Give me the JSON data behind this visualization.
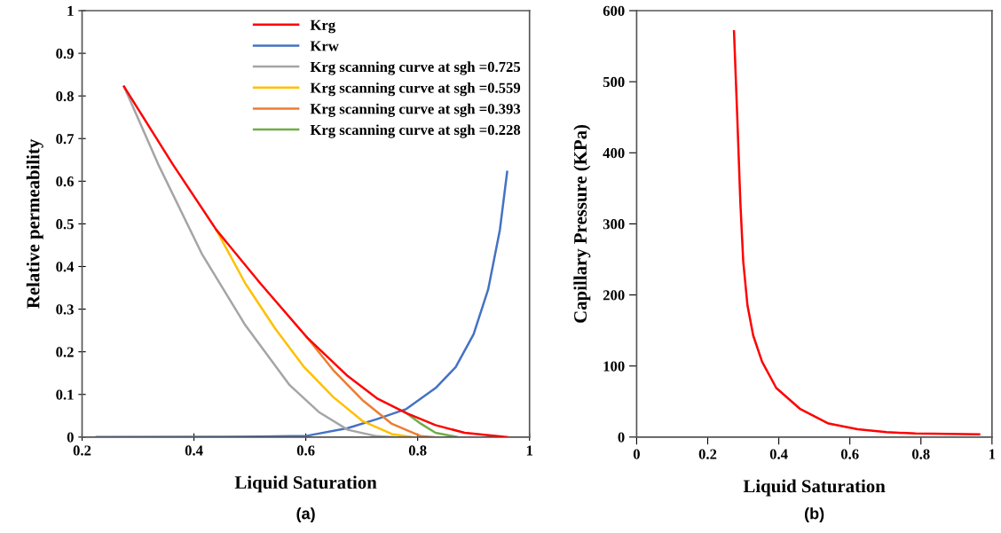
{
  "chart_data": [
    {
      "type": "line",
      "xlabel": "Liquid Saturation",
      "ylabel": "Relative permeability",
      "annotations": [
        "(a)"
      ],
      "xlim": [
        0.2,
        1
      ],
      "xticks": [
        0.2,
        0.4,
        0.6,
        0.8,
        1
      ],
      "ylim": [
        0,
        1
      ],
      "yticks": [
        0,
        0.1,
        0.2,
        0.3,
        0.4,
        0.5,
        0.6,
        0.7,
        0.8,
        0.9,
        1
      ],
      "grid": false,
      "legend": "top right",
      "marker": "none",
      "line_style": "solid",
      "series": [
        {
          "name": "Krg",
          "color": "#ff0000",
          "x": [
            0.275,
            0.362,
            0.44,
            0.519,
            0.602,
            0.675,
            0.727,
            0.78,
            0.832,
            0.884,
            0.96
          ],
          "values": [
            0.822,
            0.64,
            0.486,
            0.36,
            0.234,
            0.143,
            0.091,
            0.056,
            0.028,
            0.01,
            0.0
          ]
        },
        {
          "name": "Krw",
          "color": "#4472c4",
          "x": [
            0.226,
            0.519,
            0.602,
            0.675,
            0.727,
            0.78,
            0.832,
            0.868,
            0.9,
            0.926,
            0.947,
            0.96
          ],
          "values": [
            0.0,
            0.001,
            0.003,
            0.021,
            0.042,
            0.066,
            0.115,
            0.164,
            0.241,
            0.346,
            0.486,
            0.622
          ]
        },
        {
          "name": "Krg scanning curve at sgh =0.725",
          "color": "#a5a5a5",
          "x": [
            0.275,
            0.336,
            0.414,
            0.492,
            0.571,
            0.623,
            0.675,
            0.727,
            0.759
          ],
          "values": [
            0.822,
            0.64,
            0.43,
            0.262,
            0.122,
            0.059,
            0.017,
            0.002,
            0.0
          ]
        },
        {
          "name": "Krg scanning curve at sgh =0.559",
          "color": "#ffc000",
          "x": [
            0.44,
            0.492,
            0.545,
            0.597,
            0.649,
            0.701,
            0.754,
            0.79
          ],
          "values": [
            0.486,
            0.36,
            0.255,
            0.164,
            0.094,
            0.038,
            0.007,
            0.0
          ]
        },
        {
          "name": "Krg scanning curve at sgh =0.393",
          "color": "#ed7d31",
          "x": [
            0.602,
            0.649,
            0.701,
            0.754,
            0.806,
            0.829
          ],
          "values": [
            0.234,
            0.157,
            0.087,
            0.031,
            0.002,
            0.0
          ]
        },
        {
          "name": "Krg scanning curve at sgh =0.228",
          "color": "#70ad47",
          "x": [
            0.777,
            0.806,
            0.832,
            0.871
          ],
          "values": [
            0.059,
            0.031,
            0.01,
            0.0
          ]
        }
      ]
    },
    {
      "type": "line",
      "xlabel": "Liquid Saturation",
      "ylabel": "Capillary Pressure (KPa)",
      "annotations": [
        "(b)"
      ],
      "xlim": [
        0,
        1
      ],
      "xticks": [
        0,
        0.2,
        0.4,
        0.6,
        0.8,
        1
      ],
      "ylim": [
        0,
        600
      ],
      "yticks": [
        0,
        100,
        200,
        300,
        400,
        500,
        600
      ],
      "grid": false,
      "marker": "none",
      "line_style": "solid",
      "series": [
        {
          "color": "#ff0000",
          "x": [
            0.274,
            0.283,
            0.292,
            0.3,
            0.312,
            0.328,
            0.353,
            0.393,
            0.459,
            0.54,
            0.622,
            0.703,
            0.785,
            0.964
          ],
          "values": [
            571,
            453,
            329,
            247,
            185,
            143,
            106,
            69,
            40,
            19,
            11,
            7,
            5,
            4
          ]
        }
      ]
    }
  ]
}
